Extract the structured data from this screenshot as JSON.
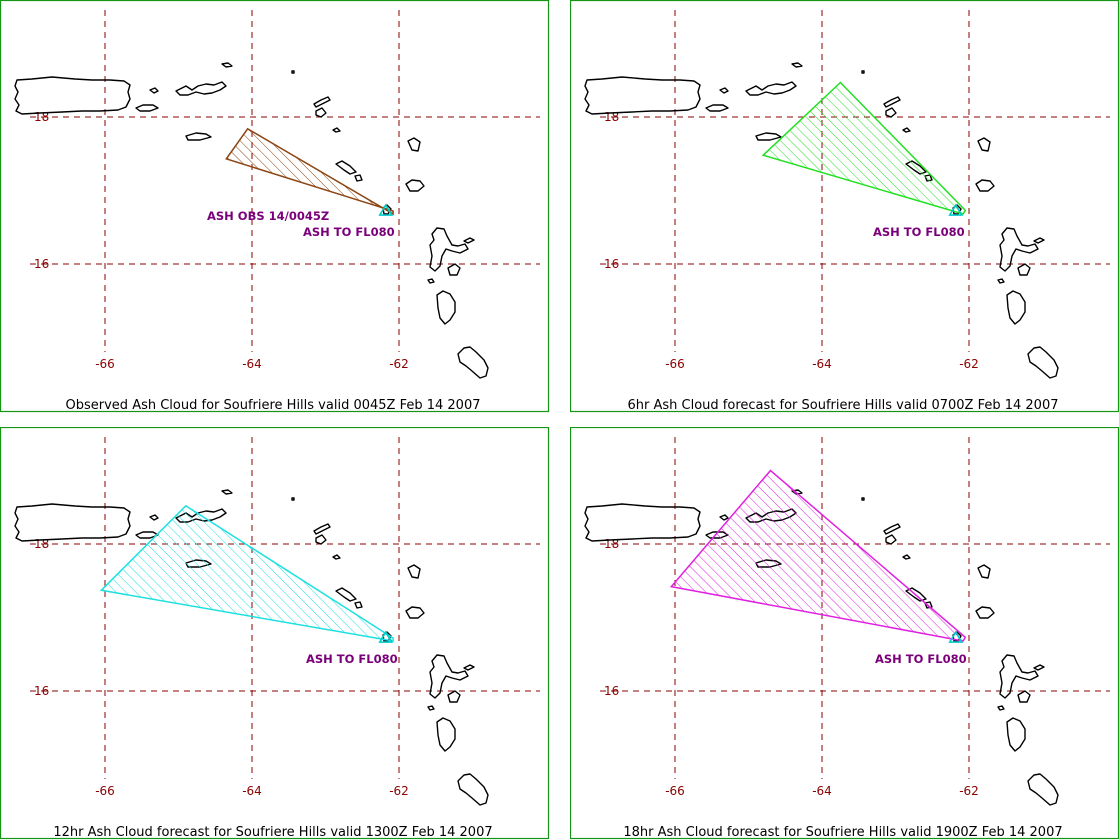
{
  "colors": {
    "frame": "#149614",
    "grid": "#8b0000",
    "coast": "#000000",
    "label": "#8b0000",
    "note": "#7a007a",
    "volcano": "#00cccc"
  },
  "panels": [
    {
      "caption": "Observed Ash Cloud for Soufriere  Hills valid 0045Z Feb 14 2007",
      "notes": [
        "ASH OBS 14/0045Z",
        "ASH TO FL080"
      ],
      "cloud_color": "#8b4513",
      "cloud_vertices": [
        [
          -64.06,
          17.84
        ],
        [
          -64.35,
          17.43
        ],
        [
          -62.08,
          16.72
        ],
        [
          -62.08,
          16.68
        ]
      ],
      "lon_labels": [
        "-66",
        "-64",
        "-62"
      ],
      "lat_labels": [
        "18",
        "16"
      ]
    },
    {
      "caption": "6hr Ash Cloud forecast for Soufriere  Hills valid 0700Z Feb 14 2007",
      "notes": [
        "ASH TO FL080"
      ],
      "cloud_color": "#22e022",
      "cloud_vertices": [
        [
          -63.75,
          18.47
        ],
        [
          -64.8,
          17.48
        ],
        [
          -62.08,
          16.68
        ],
        [
          -62.05,
          16.73
        ]
      ],
      "lon_labels": [
        "-66",
        "-64",
        "-62"
      ],
      "lat_labels": [
        "18",
        "16"
      ]
    },
    {
      "caption": "12hr Ash Cloud forecast for Soufriere  Hills valid 1300Z Feb 14 2007",
      "notes": [
        "ASH TO FL080"
      ],
      "cloud_color": "#1ee0e0",
      "cloud_vertices": [
        [
          -64.9,
          18.52
        ],
        [
          -66.05,
          17.37
        ],
        [
          -62.08,
          16.68
        ],
        [
          -62.08,
          16.72
        ]
      ],
      "lon_labels": [
        "-66",
        "-64",
        "-62"
      ],
      "lat_labels": [
        "18",
        "16"
      ]
    },
    {
      "caption": "18hr Ash Cloud forecast for Soufriere  Hills valid 1900Z Feb 14 2007",
      "notes": [
        "ASH TO FL080"
      ],
      "cloud_color": "#e020e0",
      "cloud_vertices": [
        [
          -64.7,
          19.0
        ],
        [
          -66.05,
          17.42
        ],
        [
          -62.08,
          16.68
        ],
        [
          -62.05,
          16.73
        ]
      ],
      "lon_labels": [
        "-66",
        "-64",
        "-62"
      ],
      "lat_labels": [
        "18",
        "16"
      ]
    }
  ]
}
